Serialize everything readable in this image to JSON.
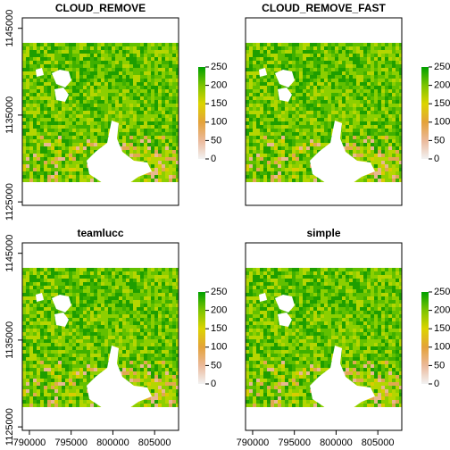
{
  "chart_data": [
    {
      "type": "raster",
      "title": "CLOUD_REMOVE",
      "xlim": [
        789150,
        807870
      ],
      "ylim": [
        1124600,
        1146200
      ],
      "yticks": [
        1125000,
        1135000,
        1145000
      ],
      "zlim": [
        0,
        250
      ],
      "zticks": [
        0,
        50,
        100,
        150,
        200,
        250
      ],
      "colors": [
        "#f2f2f2",
        "#ebb99a",
        "#e4a23a",
        "#dcd400",
        "#7cc400",
        "#00a000"
      ]
    },
    {
      "type": "raster",
      "title": "CLOUD_REMOVE_FAST",
      "xlim": [
        789150,
        807870
      ],
      "ylim": [
        1124600,
        1146200
      ],
      "zlim": [
        0,
        250
      ],
      "zticks": [
        0,
        50,
        100,
        150,
        200,
        250
      ],
      "colors": [
        "#f2f2f2",
        "#ebb99a",
        "#e4a23a",
        "#dcd400",
        "#7cc400",
        "#00a000"
      ]
    },
    {
      "type": "raster",
      "title": "teamlucc",
      "xlim": [
        789150,
        807870
      ],
      "ylim": [
        1124600,
        1146200
      ],
      "xticks": [
        790000,
        795000,
        800000,
        805000
      ],
      "yticks": [
        1125000,
        1135000,
        1145000
      ],
      "zlim": [
        0,
        250
      ],
      "zticks": [
        0,
        50,
        100,
        150,
        200,
        250
      ],
      "colors": [
        "#f2f2f2",
        "#ebb99a",
        "#e4a23a",
        "#dcd400",
        "#7cc400",
        "#00a000"
      ]
    },
    {
      "type": "raster",
      "title": "simple",
      "xlim": [
        789150,
        807870
      ],
      "ylim": [
        1124600,
        1146200
      ],
      "xticks": [
        790000,
        795000,
        800000,
        805000
      ],
      "zlim": [
        0,
        250
      ],
      "zticks": [
        0,
        50,
        100,
        150,
        200,
        250
      ],
      "colors": [
        "#f2f2f2",
        "#ebb99a",
        "#e4a23a",
        "#dcd400",
        "#7cc400",
        "#00a000"
      ]
    }
  ]
}
